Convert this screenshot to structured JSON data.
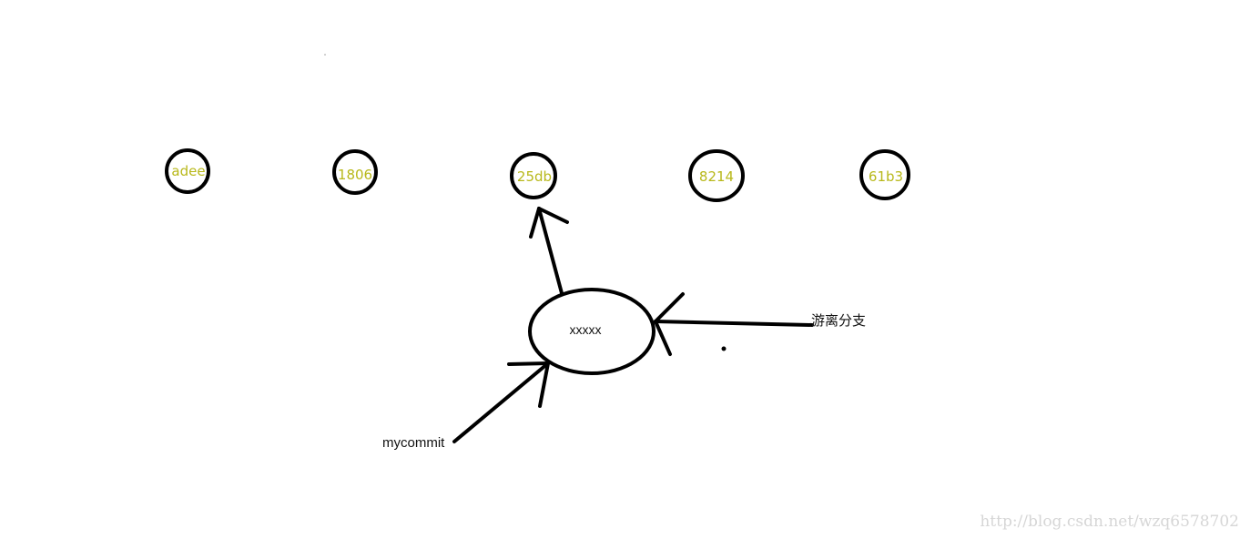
{
  "diagram": {
    "commits": [
      "adee",
      "1806",
      "25db",
      "8214",
      "61b3"
    ],
    "detached_commit": "xxxxx",
    "branch_label": "mycommit",
    "detached_label": "游离分支"
  },
  "watermark": "http://blog.csdn.net/wzq6578702",
  "colors": {
    "commit_label": "#b8b81a",
    "stroke": "#000000",
    "watermark": "#d6d6d6"
  }
}
